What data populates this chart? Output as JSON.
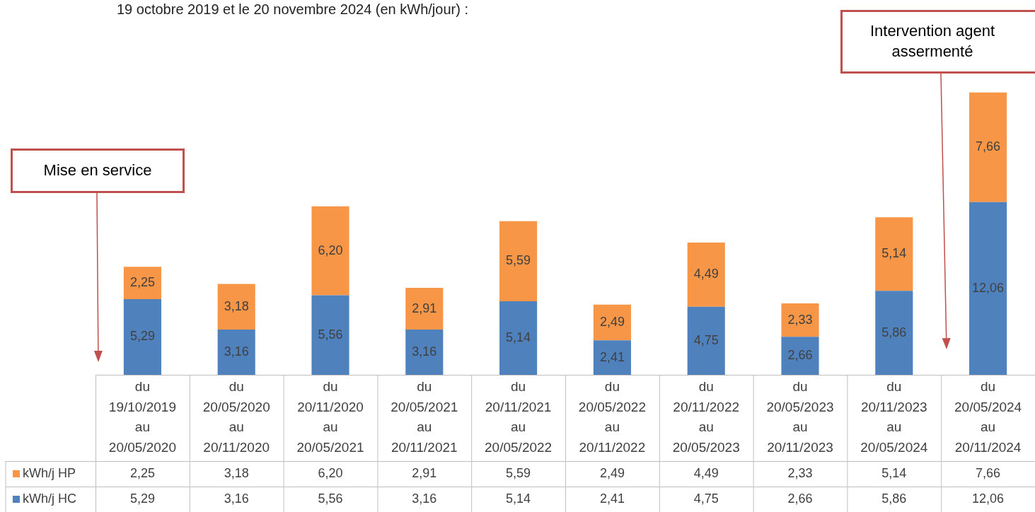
{
  "chart_data": {
    "type": "bar",
    "title": "19 octobre 2019 et le 20 novembre 2024 (en kWh/jour) :",
    "categories": [
      "du 19/10/2019 au 20/05/2020",
      "du 20/05/2020 au 20/11/2020",
      "du 20/11/2020 au 20/05/2021",
      "du 20/05/2021 au 20/11/2021",
      "du 20/11/2021 au 20/05/2022",
      "du 20/05/2022 au 20/11/2022",
      "du 20/11/2022 au 20/05/2023",
      "du 20/05/2023 au 20/11/2023",
      "du 20/11/2023 au 20/05/2024",
      "du 20/05/2024 au 20/11/2024"
    ],
    "series": [
      {
        "name": "kWh/j HC",
        "color": "#4f81bd",
        "values": [
          5.29,
          3.16,
          5.56,
          3.16,
          5.14,
          2.41,
          4.75,
          2.66,
          5.86,
          12.06
        ],
        "value_labels": [
          "5,29",
          "3,16",
          "5,56",
          "3,16",
          "5,14",
          "2,41",
          "4,75",
          "2,66",
          "5,86",
          "12,06"
        ]
      },
      {
        "name": "kWh/j HP",
        "color": "#f79646",
        "values": [
          2.25,
          3.18,
          6.2,
          2.91,
          5.59,
          2.49,
          4.49,
          2.33,
          5.14,
          7.66
        ],
        "value_labels": [
          "2,25",
          "3,18",
          "6,20",
          "2,91",
          "5,59",
          "2,49",
          "4,49",
          "2,33",
          "5,14",
          "7,66"
        ]
      }
    ],
    "stacked": true,
    "grid": false,
    "legend": "bottom left",
    "annotations": [
      "Mise en service",
      "Intervention agent assermenté"
    ]
  }
}
